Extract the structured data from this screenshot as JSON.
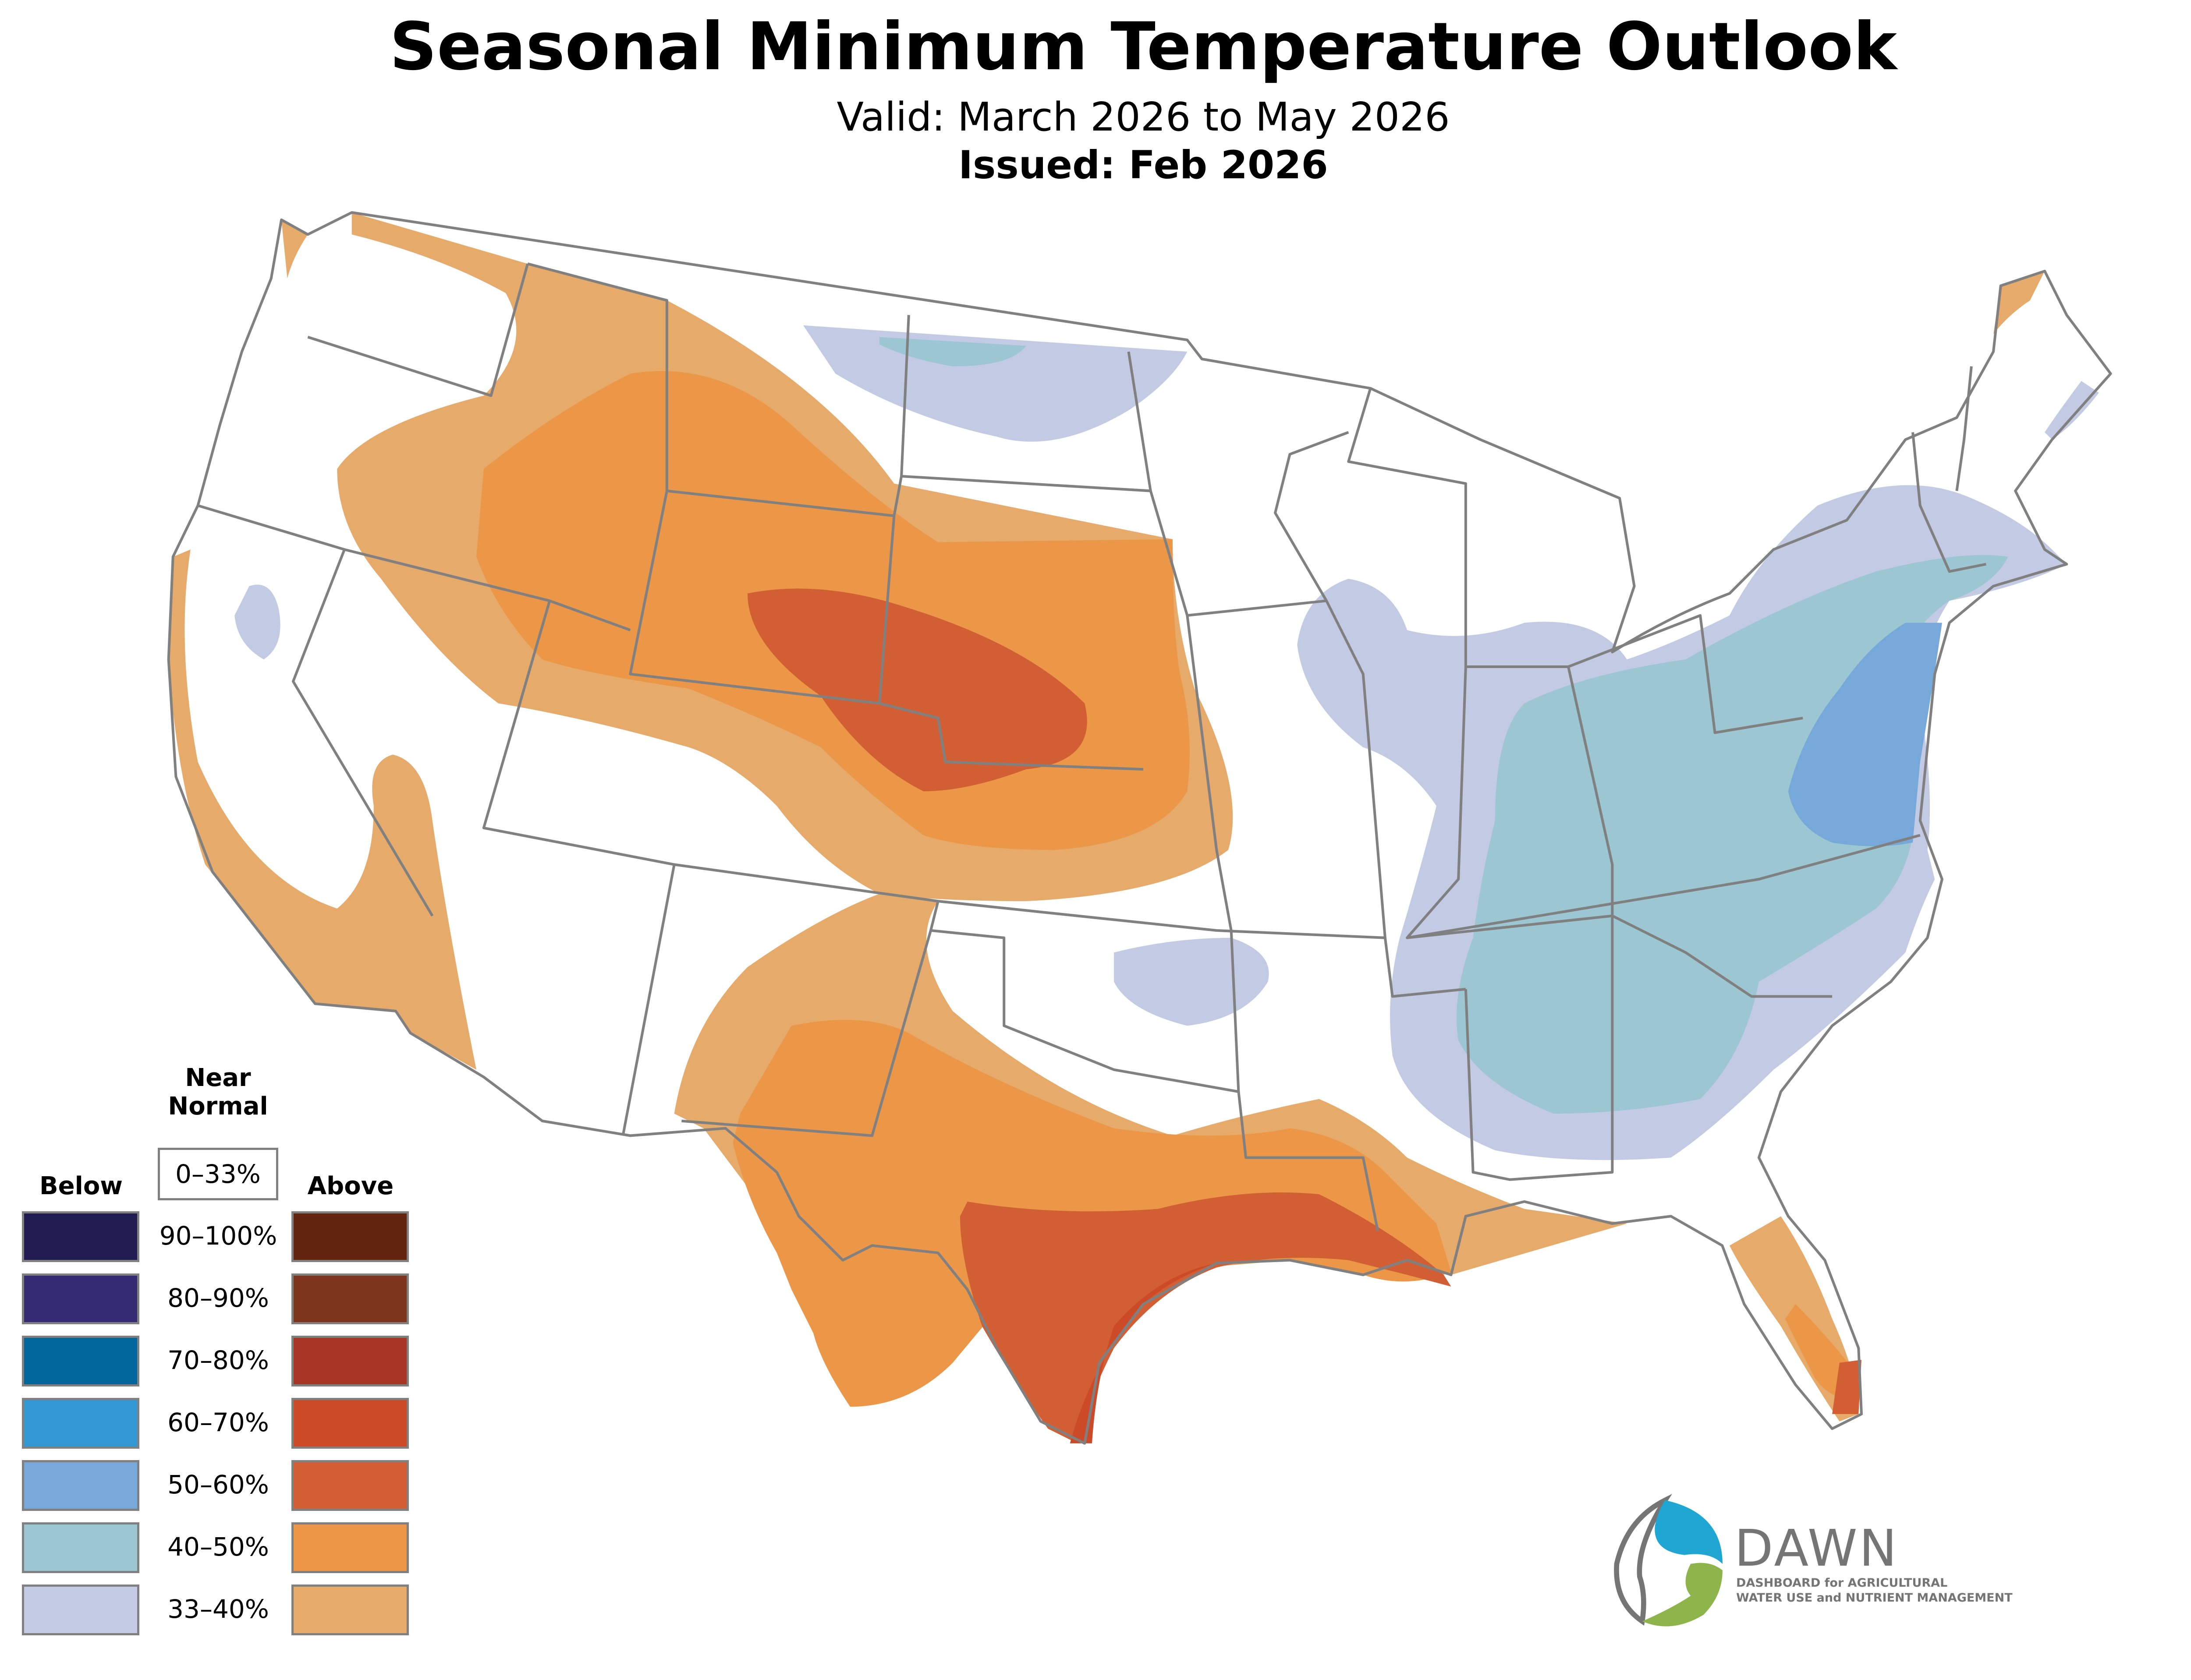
{
  "header": {
    "title": "Seasonal Minimum Temperature Outlook",
    "valid": "Valid: March 2026 to May 2026",
    "issued": "Issued: Feb 2026"
  },
  "legend": {
    "below_label": "Below",
    "near_normal_label_1": "Near",
    "near_normal_label_2": "Normal",
    "near_normal_range": "0–33%",
    "above_label": "Above",
    "rows": [
      {
        "range": "90–100%",
        "below_color": "#1f1a4f",
        "above_color": "#632410"
      },
      {
        "range": "80–90%",
        "below_color": "#332c72",
        "above_color": "#7d341c"
      },
      {
        "range": "70–80%",
        "below_color": "#00669b",
        "above_color": "#a63526"
      },
      {
        "range": "60–70%",
        "below_color": "#3399d4",
        "above_color": "#cc4a28"
      },
      {
        "range": "50–60%",
        "below_color": "#76a9da",
        "above_color": "#d25f33"
      },
      {
        "range": "40–50%",
        "below_color": "#9cc6d1",
        "above_color": "#eb9747"
      },
      {
        "range": "33–40%",
        "below_color": "#c3cae4",
        "above_color": "#e6aa6a"
      }
    ]
  },
  "map": {
    "border_color": "#808080",
    "regions": [
      {
        "category": "Above",
        "level": "33–40%",
        "area": "Northwest / Plains / Rockies"
      },
      {
        "category": "Above",
        "level": "40–50%",
        "area": "Central Rockies / Plains"
      },
      {
        "category": "Above",
        "level": "50–60%",
        "area": "Colorado / Nebraska / Kansas"
      },
      {
        "category": "Above",
        "level": "33–40%",
        "area": "Southwest / Southern Plains"
      },
      {
        "category": "Above",
        "level": "40–50%",
        "area": "Texas / Gulf Coast"
      },
      {
        "category": "Above",
        "level": "50–60%",
        "area": "South Texas / Louisiana"
      },
      {
        "category": "Above",
        "level": "60–70%",
        "area": "Texas Coast"
      },
      {
        "category": "Above",
        "level": "40–50%",
        "area": "Florida"
      },
      {
        "category": "Below",
        "level": "33–40%",
        "area": "Northern Plains"
      },
      {
        "category": "Below",
        "level": "40–50%",
        "area": "Northern Montana"
      },
      {
        "category": "Below",
        "level": "33–40%",
        "area": "Midwest / East"
      },
      {
        "category": "Below",
        "level": "40–50%",
        "area": "Ohio Valley / Southeast / Mid-Atlantic"
      },
      {
        "category": "Below",
        "level": "50–60%",
        "area": "Mid-Atlantic"
      },
      {
        "category": "Below",
        "level": "33–40%",
        "area": "Oklahoma"
      },
      {
        "category": "Below",
        "level": "33–40%",
        "area": "Northern California"
      }
    ]
  },
  "logo": {
    "name": "DAWN",
    "subtitle_1": "DASHBOARD for AGRICULTURAL",
    "subtitle_2": "WATER USE and NUTRIENT MANAGEMENT",
    "colors": {
      "blue": "#1fa6d3",
      "green": "#8db54b",
      "gray": "#757575"
    }
  }
}
